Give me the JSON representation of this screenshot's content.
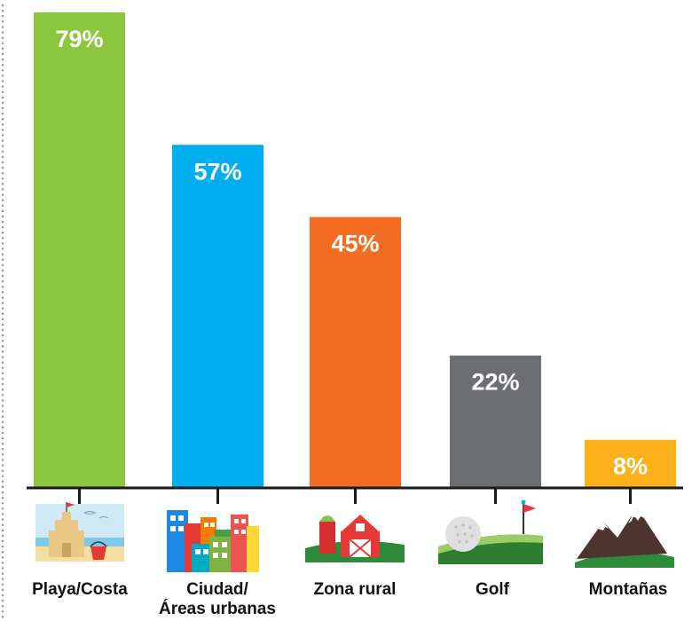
{
  "chart_data": {
    "type": "bar",
    "categories": [
      "Playa/Costa",
      "Ciudad/\nÁreas urbanas",
      "Zona rural",
      "Golf",
      "Montañas"
    ],
    "values": [
      79,
      57,
      45,
      22,
      8
    ],
    "value_labels": [
      "79%",
      "57%",
      "45%",
      "22%",
      "8%"
    ],
    "colors": [
      "#8cc63f",
      "#00aeef",
      "#f26d21",
      "#6d6e71",
      "#fbb117"
    ],
    "icons": [
      "beach-sandcastle-icon",
      "city-buildings-icon",
      "farm-barn-icon",
      "golf-ball-flag-icon",
      "mountains-icon"
    ],
    "ylim": [
      0,
      80
    ],
    "grid": false,
    "legend": "none"
  }
}
